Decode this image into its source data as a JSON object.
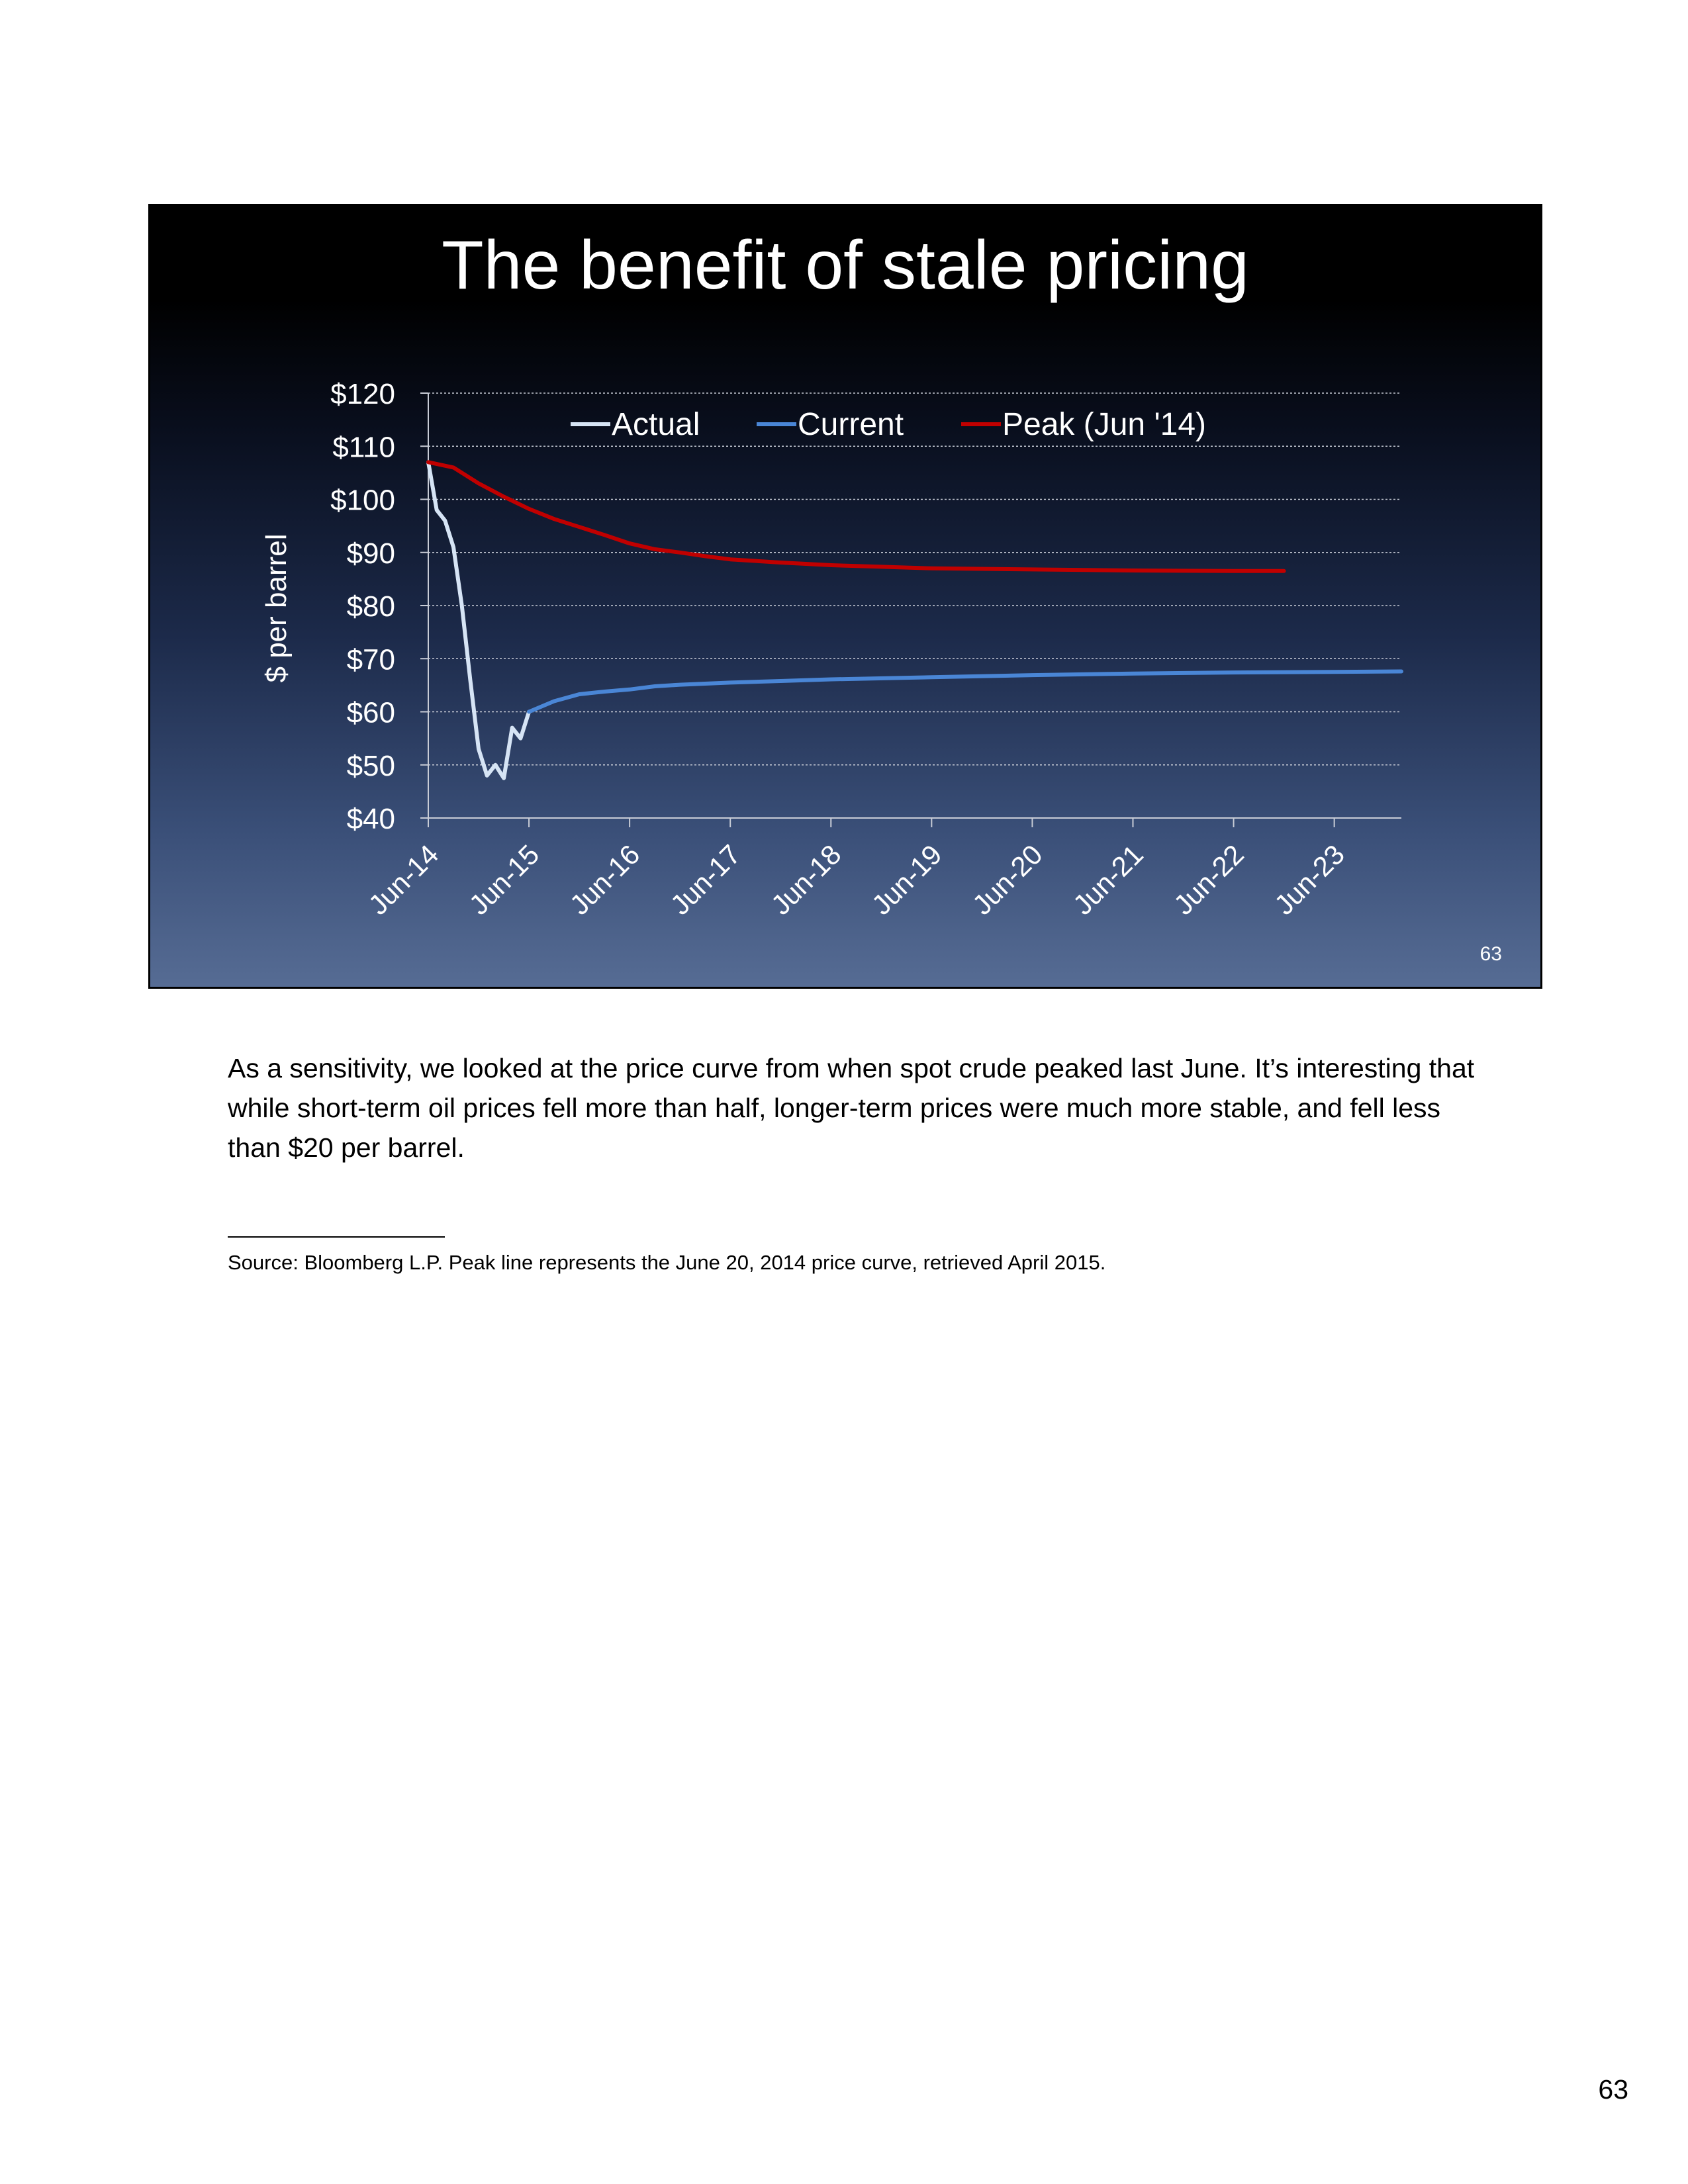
{
  "slide": {
    "title": "The benefit of stale pricing",
    "slide_number": "63"
  },
  "chart_data": {
    "type": "line",
    "title": "The benefit of stale pricing",
    "ylabel": "$ per barrel",
    "xlabel": "",
    "ylim": [
      40,
      120
    ],
    "y_ticks": [
      "$40",
      "$50",
      "$60",
      "$70",
      "$80",
      "$90",
      "$100",
      "$110",
      "$120"
    ],
    "x_ticks": [
      "Jun-14",
      "Jun-15",
      "Jun-16",
      "Jun-17",
      "Jun-18",
      "Jun-19",
      "Jun-20",
      "Jun-21",
      "Jun-22",
      "Jun-23"
    ],
    "xlim": [
      "2014-06",
      "2024-02"
    ],
    "grid": true,
    "legend_position": "top",
    "series": [
      {
        "name": "Actual",
        "color": "#d6e4f5",
        "points": [
          [
            "2014-06",
            107
          ],
          [
            "2014-07",
            98
          ],
          [
            "2014-08",
            96
          ],
          [
            "2014-09",
            91
          ],
          [
            "2014-10",
            80
          ],
          [
            "2014-11",
            66
          ],
          [
            "2014-12",
            53
          ],
          [
            "2015-01",
            48
          ],
          [
            "2015-02",
            50
          ],
          [
            "2015-03",
            47.5
          ],
          [
            "2015-04",
            57
          ],
          [
            "2015-05",
            55
          ],
          [
            "2015-06",
            60
          ]
        ]
      },
      {
        "name": "Current",
        "color": "#4a86d6",
        "points": [
          [
            "2015-06",
            60
          ],
          [
            "2015-09",
            62
          ],
          [
            "2015-12",
            63.3
          ],
          [
            "2016-03",
            63.8
          ],
          [
            "2016-06",
            64.2
          ],
          [
            "2016-09",
            64.8
          ],
          [
            "2016-12",
            65.1
          ],
          [
            "2017-06",
            65.5
          ],
          [
            "2017-12",
            65.8
          ],
          [
            "2018-06",
            66.1
          ],
          [
            "2019-06",
            66.5
          ],
          [
            "2020-06",
            66.9
          ],
          [
            "2021-06",
            67.2
          ],
          [
            "2022-06",
            67.4
          ],
          [
            "2023-06",
            67.5
          ],
          [
            "2024-02",
            67.6
          ]
        ]
      },
      {
        "name": "Peak (Jun '14)",
        "color": "#c00000",
        "points": [
          [
            "2014-06",
            107
          ],
          [
            "2014-09",
            106
          ],
          [
            "2014-12",
            103
          ],
          [
            "2015-03",
            100.5
          ],
          [
            "2015-06",
            98.2
          ],
          [
            "2015-09",
            96.3
          ],
          [
            "2015-12",
            94.8
          ],
          [
            "2016-03",
            93.3
          ],
          [
            "2016-06",
            91.7
          ],
          [
            "2016-09",
            90.6
          ],
          [
            "2016-12",
            90
          ],
          [
            "2017-03",
            89.3
          ],
          [
            "2017-06",
            88.7
          ],
          [
            "2017-12",
            88.1
          ],
          [
            "2018-06",
            87.6
          ],
          [
            "2018-12",
            87.3
          ],
          [
            "2019-06",
            87
          ],
          [
            "2020-06",
            86.8
          ],
          [
            "2021-06",
            86.6
          ],
          [
            "2022-06",
            86.5
          ],
          [
            "2022-12",
            86.5
          ]
        ]
      }
    ]
  },
  "narrative": "As a sensitivity, we looked at the price curve from when spot crude peaked last June.  It’s interesting that while short-term oil prices fell more than half, longer-term prices were much more stable, and fell less than $20 per barrel.",
  "source_note": "Source: Bloomberg L.P.  Peak line represents the June 20, 2014 price curve, retrieved April 2015.",
  "page_number": "63"
}
